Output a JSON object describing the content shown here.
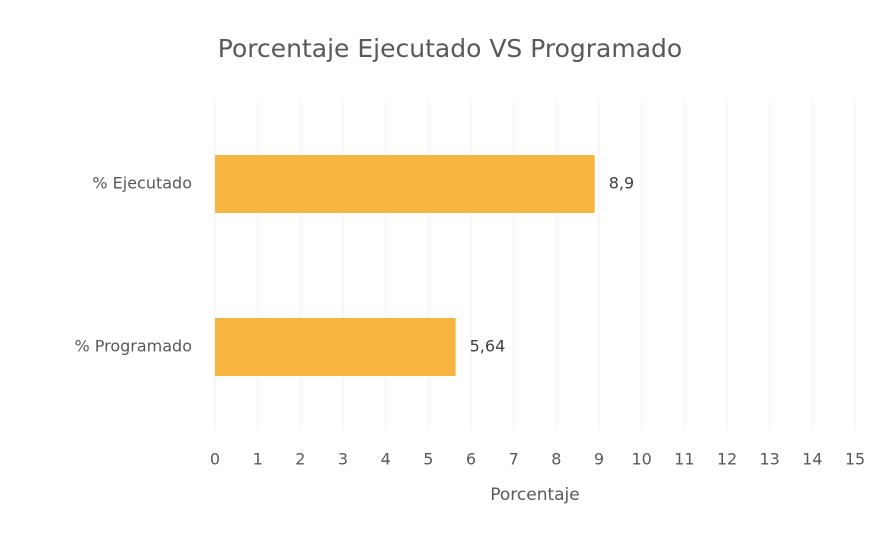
{
  "chart_data": {
    "type": "hbar",
    "title": "Porcentaje Ejecutado VS Programado",
    "categories": [
      "% Ejecutado",
      "% Programado"
    ],
    "values": [
      8.9,
      5.64
    ],
    "value_labels": [
      "8,9",
      "5,64"
    ],
    "color": "#f7b540",
    "xlabel": "Porcentaje",
    "xlim": [
      0,
      15
    ],
    "xticks": [
      0,
      1,
      2,
      3,
      4,
      5,
      6,
      7,
      8,
      9,
      10,
      11,
      12,
      13,
      14,
      15
    ],
    "grid": true
  }
}
